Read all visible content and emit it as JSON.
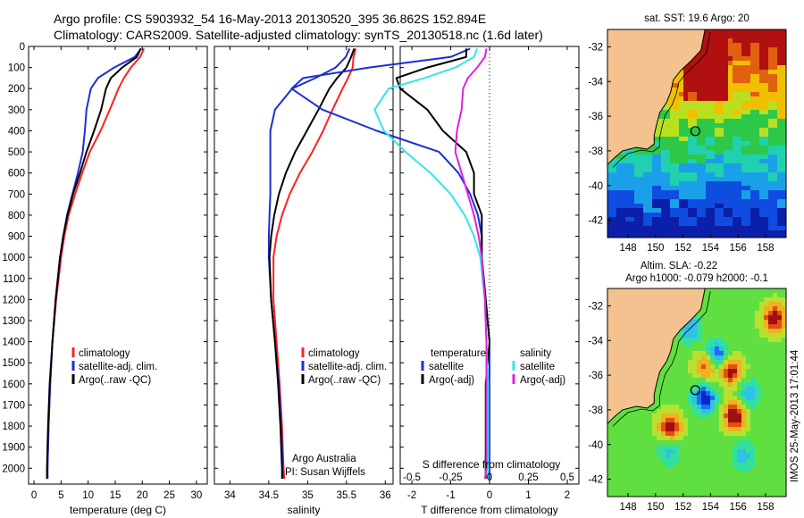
{
  "header": {
    "line1": "Argo profile: CS 5903932_54 16-May-2013 20130520_395 36.862S 152.894E",
    "line2": "Climatology: CARS2009. Satellite-adjusted climatology: synTS_20130518.nc (1.6d later)"
  },
  "colors": {
    "red": "#ff2020",
    "blue": "#1a2fd6",
    "black": "#000000",
    "cyan": "#33e6e6",
    "magenta": "#e020e0",
    "land": "#f4c28f"
  },
  "depth_axis": {
    "ylim": [
      0,
      2075
    ],
    "ticks": [
      "0",
      "100",
      "200",
      "300",
      "400",
      "500",
      "600",
      "700",
      "800",
      "900",
      "1000",
      "1100",
      "1200",
      "1300",
      "1400",
      "1500",
      "1600",
      "1700",
      "1800",
      "1900",
      "2000"
    ]
  },
  "chart_data": [
    {
      "type": "line",
      "id": "temperature",
      "xlabel": "temperature (deg C)",
      "xlim": [
        -1,
        32
      ],
      "xticks": [
        "0",
        "5",
        "10",
        "15",
        "20",
        "25",
        "30"
      ],
      "depth": [
        10,
        50,
        100,
        150,
        200,
        300,
        400,
        500,
        600,
        700,
        800,
        900,
        1000,
        1200,
        1400,
        1600,
        1800,
        2000,
        2050
      ],
      "series": [
        {
          "name": "climatology",
          "color": "red",
          "values": [
            20.3,
            19.6,
            17.9,
            16.6,
            15.6,
            14.0,
            12.3,
            10.3,
            8.9,
            7.6,
            6.4,
            5.6,
            5.0,
            4.1,
            3.4,
            3.0,
            2.7,
            2.5,
            2.5
          ]
        },
        {
          "name": "satellite-adj. clim.",
          "color": "blue",
          "values": [
            19.8,
            18.6,
            14.8,
            11.8,
            10.5,
            9.7,
            9.4,
            9.0,
            8.1,
            7.1,
            6.1,
            5.4,
            4.8,
            4.0,
            3.4,
            3.0,
            2.7,
            2.5,
            2.5
          ]
        },
        {
          "name": "Argo(..raw -QC)",
          "color": "black",
          "values": [
            19.7,
            19.0,
            16.3,
            14.2,
            13.3,
            12.4,
            11.1,
            9.7,
            8.5,
            7.2,
            6.2,
            5.4,
            4.8,
            4.0,
            3.4,
            2.9,
            2.6,
            2.4,
            2.4
          ]
        }
      ],
      "legend": [
        "climatology",
        "satellite-adj. clim.",
        "Argo(..raw -QC)"
      ]
    },
    {
      "type": "line",
      "id": "salinity",
      "xlabel": "salinity",
      "xlim": [
        33.8,
        36.1
      ],
      "xticks": [
        "34",
        "34.5",
        "35",
        "35.5",
        "36"
      ],
      "depth": [
        10,
        50,
        100,
        150,
        200,
        300,
        400,
        500,
        600,
        700,
        800,
        900,
        1000,
        1200,
        1400,
        1600,
        1800,
        2000,
        2050
      ],
      "series": [
        {
          "name": "climatology",
          "color": "red",
          "values": [
            35.62,
            35.59,
            35.58,
            35.52,
            35.45,
            35.32,
            35.2,
            35.06,
            34.9,
            34.77,
            34.67,
            34.6,
            34.56,
            34.56,
            34.6,
            34.64,
            34.67,
            34.69,
            34.7
          ]
        },
        {
          "name": "satellite-adj. clim.",
          "color": "blue",
          "values": [
            35.54,
            35.49,
            35.36,
            35.1,
            34.8,
            34.58,
            34.52,
            34.52,
            34.52,
            34.52,
            34.51,
            34.5,
            34.5,
            34.53,
            34.58,
            34.63,
            34.66,
            34.68,
            34.68
          ]
        },
        {
          "name": "Argo(..raw -QC)",
          "color": "black",
          "values": [
            35.6,
            35.56,
            35.5,
            35.38,
            35.28,
            35.14,
            34.99,
            34.84,
            34.72,
            34.63,
            34.57,
            34.53,
            34.51,
            34.53,
            34.58,
            34.62,
            34.65,
            34.67,
            34.67
          ]
        }
      ],
      "legend": [
        "climatology",
        "satellite-adj. clim.",
        "Argo(..raw -QC)"
      ],
      "note1": "Argo Australia",
      "note2": "PI: Susan Wijffels"
    },
    {
      "type": "line",
      "id": "difference",
      "xlabel": "T difference from climatology",
      "xlabel_top": "S difference from climatology",
      "xlim": [
        -2.3,
        2.3
      ],
      "xticks": [
        "-2",
        "-1",
        "0",
        "1",
        "2"
      ],
      "top_ticks": [
        "-0.5",
        "-0.25",
        "0",
        "0.25",
        "0.5"
      ],
      "depth": [
        10,
        50,
        100,
        150,
        200,
        300,
        400,
        500,
        600,
        700,
        800,
        900,
        1000,
        1200,
        1400,
        1600,
        1800,
        2000,
        2050
      ],
      "series": [
        {
          "name": "satellite",
          "group": "temperature",
          "color": "blue",
          "values": [
            -0.5,
            -1.0,
            -3.1,
            -4.8,
            -5.1,
            -4.3,
            -2.9,
            -1.3,
            -0.8,
            -0.5,
            -0.3,
            -0.2,
            -0.2,
            -0.1,
            0.0,
            0.0,
            0.0,
            0.0,
            0.0
          ]
        },
        {
          "name": "Argo(-adj)",
          "group": "temperature",
          "color": "black",
          "values": [
            -0.6,
            -0.6,
            -1.6,
            -2.4,
            -2.3,
            -1.6,
            -1.2,
            -0.6,
            -0.4,
            -0.4,
            -0.2,
            -0.2,
            -0.2,
            -0.1,
            0.0,
            -0.1,
            -0.1,
            -0.1,
            -0.1
          ]
        },
        {
          "name": "satellite",
          "group": "salinity",
          "color": "cyan",
          "values": [
            -0.08,
            -0.1,
            -0.22,
            -0.42,
            -0.65,
            -0.74,
            -0.68,
            -0.54,
            -0.38,
            -0.25,
            -0.16,
            -0.1,
            -0.06,
            -0.03,
            -0.02,
            -0.01,
            -0.01,
            -0.01,
            -0.01
          ]
        },
        {
          "name": "Argo(-adj)",
          "group": "salinity",
          "color": "magenta",
          "values": [
            -0.02,
            -0.03,
            -0.08,
            -0.14,
            -0.17,
            -0.18,
            -0.21,
            -0.22,
            -0.18,
            -0.14,
            -0.1,
            -0.07,
            -0.05,
            -0.03,
            -0.02,
            -0.02,
            -0.02,
            -0.02,
            -0.03
          ]
        }
      ],
      "legend_titles": [
        "temperature",
        "salinity"
      ],
      "legend": [
        "satellite",
        "Argo(-adj)",
        "satellite",
        "Argo(-adj)"
      ]
    },
    {
      "type": "heatmap",
      "id": "sst_map",
      "title": "sat. SST: 19.6  Argo: 20",
      "xticks": [
        "148",
        "150",
        "152",
        "154",
        "156",
        "158"
      ],
      "yticks": [
        "-32",
        "-34",
        "-36",
        "-38",
        "-40",
        "-42"
      ],
      "lon_range": [
        146.5,
        159.5
      ],
      "lat_range": [
        -43,
        -31
      ],
      "marker": {
        "lon": 152.894,
        "lat": -36.862
      }
    },
    {
      "type": "heatmap",
      "id": "sla_map",
      "title1": "Altim. SLA: -0.22",
      "title2": "Argo h1000: -0.079 h2000: -0.1",
      "xticks": [
        "148",
        "150",
        "152",
        "154",
        "156",
        "158"
      ],
      "yticks": [
        "-32",
        "-34",
        "-36",
        "-38",
        "-40",
        "-42"
      ],
      "lon_range": [
        146.5,
        159.5
      ],
      "lat_range": [
        -43,
        -31
      ],
      "marker": {
        "lon": 152.894,
        "lat": -36.862
      }
    }
  ],
  "stamp": "IMOS 25-May-2013 17:01:44"
}
